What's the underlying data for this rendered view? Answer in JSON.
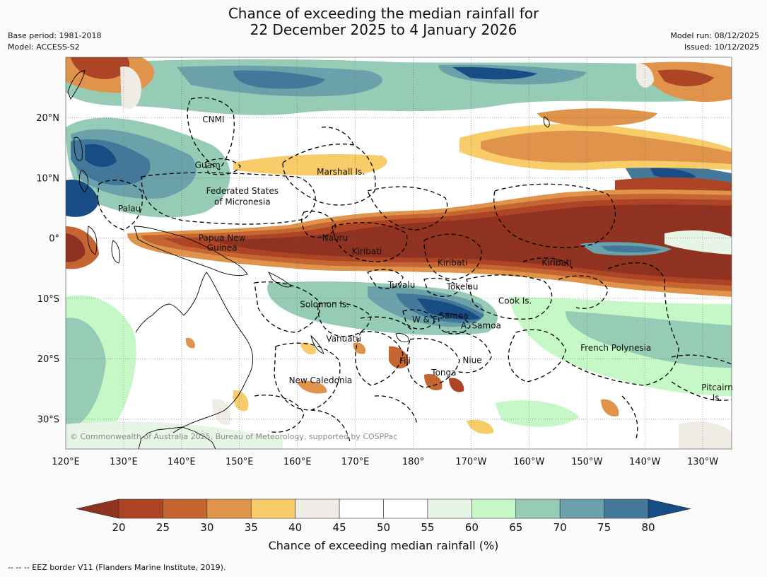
{
  "title": {
    "line1": "Chance of exceeding the median rainfall for",
    "line2": "22 December 2025 to 4 January 2026"
  },
  "meta_left": {
    "base_period": "Base period: 1981-2018",
    "model": "Model: ACCESS-S2"
  },
  "meta_right": {
    "model_run": "Model run: 08/12/2025",
    "issued": "Issued: 10/12/2025"
  },
  "map": {
    "lon_range": [
      120,
      235
    ],
    "lat_range": [
      -35,
      30
    ],
    "lon_ticks": [
      {
        "lon": 120,
        "label": "120°E"
      },
      {
        "lon": 130,
        "label": "130°E"
      },
      {
        "lon": 140,
        "label": "140°E"
      },
      {
        "lon": 150,
        "label": "150°E"
      },
      {
        "lon": 160,
        "label": "160°E"
      },
      {
        "lon": 170,
        "label": "170°E"
      },
      {
        "lon": 180,
        "label": "180°"
      },
      {
        "lon": 190,
        "label": "170°W"
      },
      {
        "lon": 200,
        "label": "160°W"
      },
      {
        "lon": 210,
        "label": "150°W"
      },
      {
        "lon": 220,
        "label": "140°W"
      },
      {
        "lon": 230,
        "label": "130°W"
      }
    ],
    "lat_ticks": [
      {
        "lat": 20,
        "label": "20°N"
      },
      {
        "lat": 10,
        "label": "10°N"
      },
      {
        "lat": 0,
        "label": "0°"
      },
      {
        "lat": -10,
        "label": "10°S"
      },
      {
        "lat": -20,
        "label": "20°S"
      },
      {
        "lat": -30,
        "label": "30°S"
      }
    ],
    "regions": [
      {
        "name": "CNMI",
        "lon": 145.5,
        "lat": 19.7
      },
      {
        "name": "Guam",
        "lon": 144.5,
        "lat": 12.1
      },
      {
        "name": "Marshall Is.",
        "lon": 167.5,
        "lat": 11.0
      },
      {
        "name": "Federated States",
        "lon": 150.5,
        "lat": 7.8
      },
      {
        "name": "of Micronesia",
        "lon": 150.5,
        "lat": 6.0
      },
      {
        "name": "Palau",
        "lon": 131.0,
        "lat": 4.9
      },
      {
        "name": "Papua New",
        "lon": 147.0,
        "lat": 0.0
      },
      {
        "name": "Guinea",
        "lon": 147.0,
        "lat": -1.6
      },
      {
        "name": "Nauru",
        "lon": 166.5,
        "lat": 0.0
      },
      {
        "name": "Kiribati",
        "lon": 172.0,
        "lat": -2.2
      },
      {
        "name": "Kiribati",
        "lon": 186.8,
        "lat": -4.1
      },
      {
        "name": "Kiribati",
        "lon": 204.8,
        "lat": -4.1
      },
      {
        "name": "Tuvalu",
        "lon": 178.0,
        "lat": -7.8
      },
      {
        "name": "Tokelau",
        "lon": 188.5,
        "lat": -8.1
      },
      {
        "name": "Cook Is.",
        "lon": 197.6,
        "lat": -10.4
      },
      {
        "name": "Solomon Is.",
        "lon": 164.7,
        "lat": -11.0
      },
      {
        "name": "Samoa",
        "lon": 187.0,
        "lat": -12.9
      },
      {
        "name": "W & F",
        "lon": 182.0,
        "lat": -13.5
      },
      {
        "name": "A. Samoa",
        "lon": 191.7,
        "lat": -14.5
      },
      {
        "name": "Vanuatu",
        "lon": 168.0,
        "lat": -16.7
      },
      {
        "name": "Fiji",
        "lon": 178.6,
        "lat": -20.4
      },
      {
        "name": "Niue",
        "lon": 190.2,
        "lat": -20.3
      },
      {
        "name": "French Polynesia",
        "lon": 215.0,
        "lat": -18.2
      },
      {
        "name": "Tonga",
        "lon": 185.3,
        "lat": -22.3
      },
      {
        "name": "New Caledonia",
        "lon": 164.0,
        "lat": -23.6
      },
      {
        "name": "Pitcairn",
        "lon": 232.5,
        "lat": -24.8
      },
      {
        "name": "Is.",
        "lon": 232.5,
        "lat": -26.5
      }
    ],
    "copyright": "© Commonwealth of Australia 2025, Bureau of Meteorology, supported by COSPPac"
  },
  "colorbar": {
    "ticks": [
      "20",
      "25",
      "30",
      "35",
      "40",
      "45",
      "50",
      "55",
      "60",
      "65",
      "70",
      "75",
      "80"
    ],
    "colors": [
      "#ac4425",
      "#c56632",
      "#e0934a",
      "#f9cc6a",
      "#efece6",
      "#ffffff",
      "#ffffff",
      "#e6f5e6",
      "#c6f7c6",
      "#96cbb5",
      "#6aa1aa",
      "#43789a"
    ],
    "under_color": "#8f3221",
    "over_color": "#174c84",
    "label": "Chance of exceeding median rainfall (%)"
  },
  "footer": "--  --  -- EEZ border V11 (Flanders Marine Institute, 2019)."
}
